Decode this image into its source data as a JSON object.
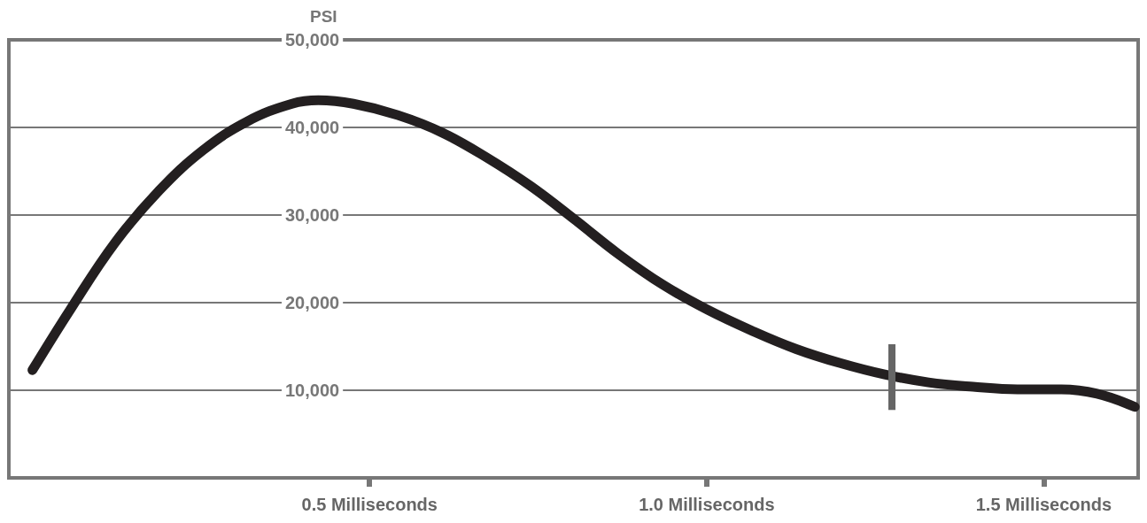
{
  "chart_data": {
    "type": "line",
    "ylabel": "PSI",
    "x": [
      0.0,
      0.056,
      0.122,
      0.188,
      0.253,
      0.319,
      0.385,
      0.424,
      0.476,
      0.542,
      0.608,
      0.673,
      0.739,
      0.804,
      0.87,
      0.936,
      1.001,
      1.067,
      1.133,
      1.198,
      1.264,
      1.329,
      1.395,
      1.461,
      1.526,
      1.579,
      1.635
    ],
    "series": [
      {
        "color": "#231f20",
        "values": [
          12300,
          19200,
          26800,
          32800,
          37400,
          40700,
          42700,
          43100,
          42700,
          41400,
          39400,
          36600,
          33300,
          29500,
          25500,
          22000,
          19200,
          16800,
          14700,
          13100,
          11800,
          10900,
          10400,
          10100,
          10100,
          9600,
          8100
        ]
      }
    ],
    "xlim": [
      -0.035,
      1.64
    ],
    "xticks": [
      {
        "value": 0.5,
        "label": "0.5 Milliseconds"
      },
      {
        "value": 1.0,
        "label": "1.0 Milliseconds"
      },
      {
        "value": 1.5,
        "label": "1.5 Milliseconds"
      }
    ],
    "ylim": [
      0,
      50000
    ],
    "yticks": [
      {
        "value": 10000,
        "label": "10,000"
      },
      {
        "value": 20000,
        "label": "20,000"
      },
      {
        "value": 30000,
        "label": "30,000"
      },
      {
        "value": 40000,
        "label": "40,000"
      },
      {
        "value": 50000,
        "label": "50,000"
      }
    ],
    "ref_lines": [
      {
        "axis": "x",
        "value": 1.274,
        "color": "#666666"
      }
    ],
    "grid": "y",
    "line_style": "solid"
  }
}
